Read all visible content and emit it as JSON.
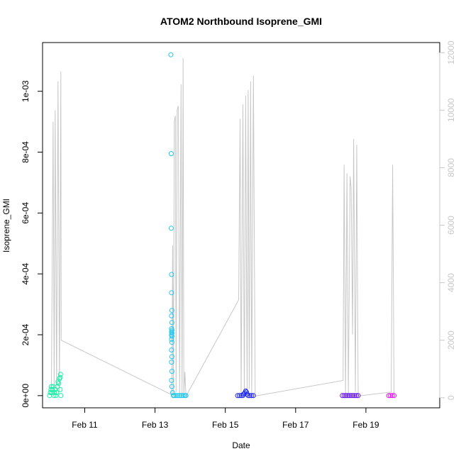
{
  "chart_data": {
    "type": "scatter",
    "title": "ATOM2 Northbound Isoprene_GMI",
    "xlabel": "Date",
    "ylabel": "Isoprene_GMI",
    "x_unit": "days in February",
    "xlim": [
      9.8,
      21.1
    ],
    "ylim": [
      -4e-05,
      0.00116
    ],
    "y2lim": [
      -350,
      12350
    ],
    "x_ticks": [
      {
        "value": 11,
        "label": "Feb 11"
      },
      {
        "value": 13,
        "label": "Feb 13"
      },
      {
        "value": 15,
        "label": "Feb 15"
      },
      {
        "value": 17,
        "label": "Feb 17"
      },
      {
        "value": 19,
        "label": "Feb 19"
      }
    ],
    "y_ticks": [
      {
        "value": 0,
        "label": "0e+00"
      },
      {
        "value": 0.0002,
        "label": "2e-04"
      },
      {
        "value": 0.0004,
        "label": "4e-04"
      },
      {
        "value": 0.0006,
        "label": "6e-04"
      },
      {
        "value": 0.0008,
        "label": "8e-04"
      },
      {
        "value": 0.001,
        "label": "1e-03"
      }
    ],
    "y2_ticks": [
      {
        "value": 0,
        "label": "0"
      },
      {
        "value": 2000,
        "label": "2000"
      },
      {
        "value": 4000,
        "label": "4000"
      },
      {
        "value": 6000,
        "label": "6000"
      },
      {
        "value": 8000,
        "label": "8000"
      },
      {
        "value": 10000,
        "label": "10000"
      },
      {
        "value": 12000,
        "label": "12000"
      }
    ],
    "grid": false,
    "colors": {
      "altitude_line": "#c8c8c8",
      "flight_1": "#19f0a8",
      "flight_2": "#1ec8f0",
      "flight_3": "#1e28f0",
      "flight_4": "#6414f0",
      "flight_5": "#e614f0"
    },
    "altitude_series": [
      [
        10.05,
        60
      ],
      [
        10.1,
        9600
      ],
      [
        10.13,
        120
      ],
      [
        10.16,
        10000
      ],
      [
        10.2,
        150
      ],
      [
        10.24,
        11000
      ],
      [
        10.28,
        200
      ],
      [
        10.32,
        11350
      ],
      [
        10.33,
        2000
      ],
      [
        13.48,
        100
      ],
      [
        13.5,
        5300
      ],
      [
        13.52,
        100
      ],
      [
        13.55,
        9600
      ],
      [
        13.58,
        9800
      ],
      [
        13.6,
        200
      ],
      [
        13.63,
        10000
      ],
      [
        13.66,
        10150
      ],
      [
        13.7,
        100
      ],
      [
        13.74,
        10900
      ],
      [
        13.77,
        100
      ],
      [
        13.8,
        11800
      ],
      [
        13.82,
        100
      ],
      [
        13.85,
        900
      ],
      [
        13.88,
        50
      ],
      [
        15.38,
        3400
      ],
      [
        15.42,
        9700
      ],
      [
        15.45,
        100
      ],
      [
        15.5,
        10200
      ],
      [
        15.54,
        100
      ],
      [
        15.58,
        10500
      ],
      [
        15.62,
        200
      ],
      [
        15.65,
        10700
      ],
      [
        15.68,
        300
      ],
      [
        15.72,
        11000
      ],
      [
        15.75,
        100
      ],
      [
        15.8,
        11200
      ],
      [
        15.85,
        60
      ],
      [
        18.35,
        600
      ],
      [
        18.38,
        8100
      ],
      [
        18.42,
        100
      ],
      [
        18.46,
        7800
      ],
      [
        18.5,
        100
      ],
      [
        18.55,
        7700
      ],
      [
        18.58,
        7300
      ],
      [
        18.62,
        2200
      ],
      [
        18.65,
        9000
      ],
      [
        18.7,
        200
      ],
      [
        18.74,
        8800
      ],
      [
        18.78,
        60
      ],
      [
        19.72,
        200
      ],
      [
        19.76,
        8100
      ],
      [
        19.8,
        60
      ]
    ],
    "series": [
      {
        "color_key": "flight_1",
        "points": [
          [
            10.0,
            0.0
          ],
          [
            10.02,
            1e-05
          ],
          [
            10.04,
            2e-05
          ],
          [
            10.05,
            3e-05
          ],
          [
            10.06,
            1e-05
          ],
          [
            10.08,
            2e-05
          ],
          [
            10.1,
            3e-05
          ],
          [
            10.12,
            0.0
          ],
          [
            10.14,
            1e-05
          ],
          [
            10.16,
            2e-05
          ],
          [
            10.18,
            0.0
          ],
          [
            10.2,
            1e-05
          ],
          [
            10.22,
            3e-05
          ],
          [
            10.24,
            4.5e-05
          ],
          [
            10.26,
            4e-05
          ],
          [
            10.28,
            5.5e-05
          ],
          [
            10.3,
            6e-05
          ],
          [
            10.31,
            7e-05
          ],
          [
            10.3,
            2e-05
          ],
          [
            10.32,
            0.0
          ]
        ]
      },
      {
        "color_key": "flight_2",
        "points": [
          [
            13.45,
            0.00112
          ],
          [
            13.46,
            0.000795
          ],
          [
            13.46,
            0.00055
          ],
          [
            13.47,
            0.000398
          ],
          [
            13.47,
            0.000338
          ],
          [
            13.48,
            0.00028
          ],
          [
            13.47,
            0.000262
          ],
          [
            13.48,
            0.00024
          ],
          [
            13.47,
            0.00022
          ],
          [
            13.48,
            0.000215
          ],
          [
            13.47,
            0.00021
          ],
          [
            13.48,
            0.000205
          ],
          [
            13.47,
            0.0002
          ],
          [
            13.48,
            0.000195
          ],
          [
            13.47,
            0.000185
          ],
          [
            13.48,
            0.000175
          ],
          [
            13.47,
            0.00015
          ],
          [
            13.48,
            0.000128
          ],
          [
            13.47,
            0.00011
          ],
          [
            13.48,
            8e-05
          ],
          [
            13.47,
            5e-05
          ],
          [
            13.48,
            3e-05
          ],
          [
            13.5,
            1e-05
          ],
          [
            13.52,
            0.0
          ],
          [
            13.55,
            0.0
          ],
          [
            13.6,
            0.0
          ],
          [
            13.65,
            0.0
          ],
          [
            13.7,
            0.0
          ],
          [
            13.75,
            0.0
          ],
          [
            13.8,
            0.0
          ],
          [
            13.85,
            0.0
          ],
          [
            13.88,
            0.0
          ]
        ]
      },
      {
        "color_key": "flight_3",
        "points": [
          [
            15.35,
            0.0
          ],
          [
            15.4,
            0.0
          ],
          [
            15.45,
            0.0
          ],
          [
            15.5,
            0.0
          ],
          [
            15.52,
            5e-06
          ],
          [
            15.55,
            8e-06
          ],
          [
            15.58,
            1.5e-05
          ],
          [
            15.6,
            1.2e-05
          ],
          [
            15.62,
            5e-06
          ],
          [
            15.65,
            0.0
          ],
          [
            15.7,
            0.0
          ],
          [
            15.75,
            0.0
          ],
          [
            15.8,
            0.0
          ]
        ]
      },
      {
        "color_key": "flight_4",
        "points": [
          [
            18.33,
            0.0
          ],
          [
            18.38,
            0.0
          ],
          [
            18.43,
            0.0
          ],
          [
            18.48,
            0.0
          ],
          [
            18.53,
            0.0
          ],
          [
            18.58,
            0.0
          ],
          [
            18.63,
            0.0
          ],
          [
            18.68,
            0.0
          ],
          [
            18.73,
            0.0
          ],
          [
            18.78,
            0.0
          ]
        ]
      },
      {
        "color_key": "flight_5",
        "points": [
          [
            19.65,
            0.0
          ],
          [
            19.7,
            0.0
          ],
          [
            19.75,
            0.0
          ],
          [
            19.8,
            0.0
          ]
        ]
      }
    ]
  }
}
